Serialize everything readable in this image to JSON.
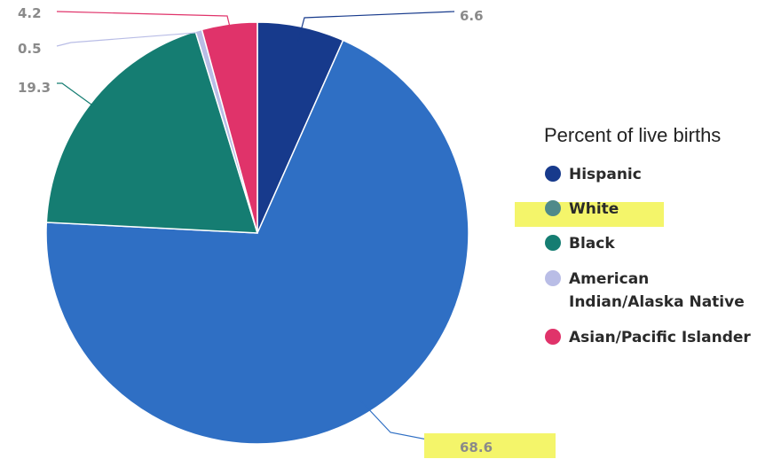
{
  "chart_data": {
    "type": "pie",
    "legend_title": "Percent of live births",
    "legend_position": "right",
    "slices": [
      {
        "name": "Hispanic",
        "value": 6.6,
        "label": "6.6",
        "color": "#173a8c"
      },
      {
        "name": "White",
        "value": 68.6,
        "label": "68.6",
        "color": "#2f6fc4",
        "legend_color": "#4f8a8a",
        "highlighted": true
      },
      {
        "name": "Black",
        "value": 19.3,
        "label": "19.3",
        "color": "#157d72"
      },
      {
        "name": "American Indian/Alaska Native",
        "value": 0.5,
        "label": "0.5",
        "color": "#b9bde6"
      },
      {
        "name": "Asian/Pacific Islander",
        "value": 4.2,
        "label": "4.2",
        "color": "#e0336a"
      }
    ],
    "highlight_color": "#f4f56a"
  }
}
